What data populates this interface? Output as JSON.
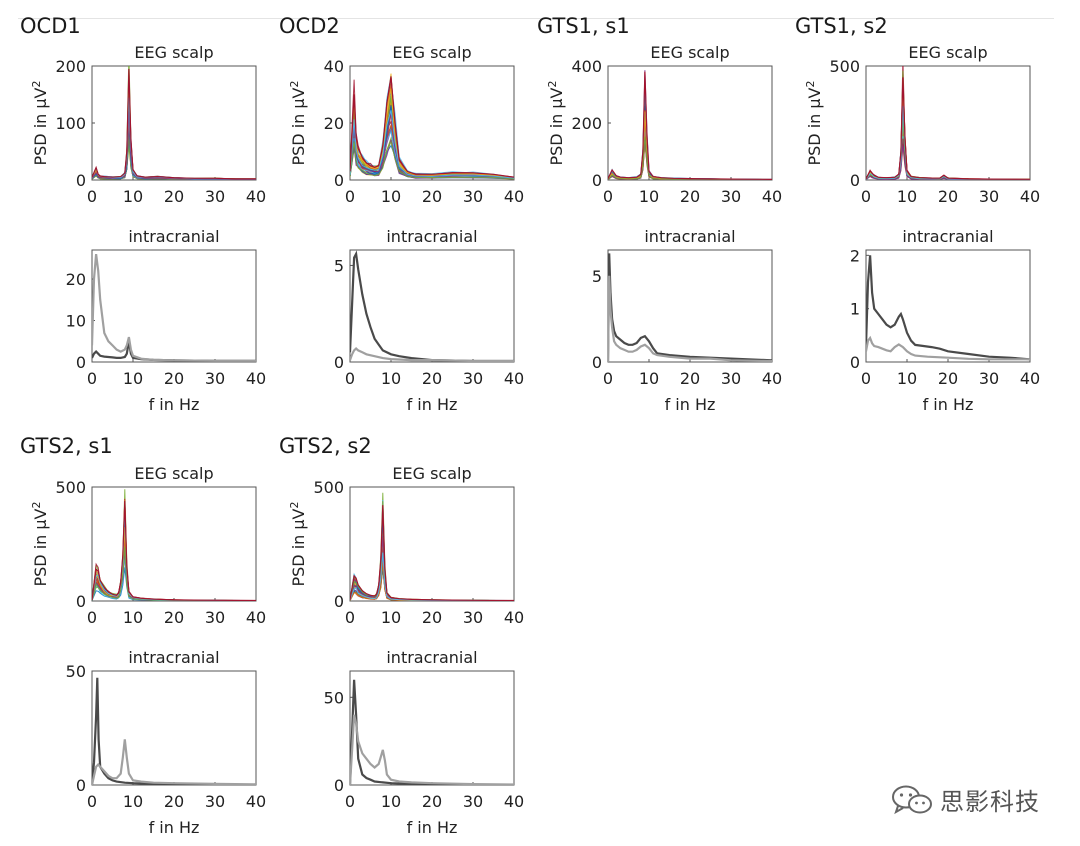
{
  "figure": {
    "groups": [
      {
        "label": "OCD1"
      },
      {
        "label": "OCD2"
      },
      {
        "label": "GTS1, s1"
      },
      {
        "label": "GTS1, s2"
      },
      {
        "label": "GTS2, s1"
      },
      {
        "label": "GTS2, s2"
      }
    ]
  },
  "watermark": {
    "text": "思影科技",
    "icon": "wechat-logo-icon"
  },
  "colors": {
    "axis": "#555555",
    "intracranial_dark": "#4a4a4a",
    "intracranial_light": "#a0a0a0",
    "eeg_palette": [
      "#0072bd",
      "#d95319",
      "#edb120",
      "#7e2f8e",
      "#77ac30",
      "#4dbeee",
      "#a2142f"
    ]
  },
  "chart_data": [
    {
      "panel": "OCD1 EEG scalp",
      "type": "line",
      "title": "EEG scalp",
      "ylabel": "PSD in µV²",
      "xlabel": "",
      "xlim": [
        0,
        40
      ],
      "ylim": [
        0,
        200
      ],
      "xticks": [
        "0",
        "10",
        "20",
        "30",
        "40"
      ],
      "yticks": [
        "0",
        "100",
        "200"
      ],
      "series": [
        {
          "x": [
            0,
            1,
            1.5,
            2,
            3,
            5,
            7,
            8,
            8.5,
            9,
            9.5,
            10,
            11,
            13,
            16,
            20,
            25,
            30,
            35,
            40
          ],
          "y": [
            5,
            22,
            10,
            7,
            6,
            5,
            6,
            12,
            50,
            195,
            70,
            18,
            7,
            5,
            6,
            4,
            3,
            3,
            2,
            2
          ]
        }
      ]
    },
    {
      "panel": "OCD1 intracranial",
      "type": "line",
      "title": "intracranial",
      "ylabel": "",
      "xlabel": "f in Hz",
      "xlim": [
        0,
        40
      ],
      "ylim": [
        0,
        27
      ],
      "xticks": [
        "0",
        "10",
        "20",
        "30",
        "40"
      ],
      "yticks": [
        "0",
        "10",
        "20"
      ],
      "series": [
        {
          "x": [
            0,
            0.5,
            1,
            1.5,
            2,
            3,
            4,
            5,
            6,
            7,
            8,
            8.5,
            9,
            9.5,
            10,
            12,
            15,
            20,
            30,
            40
          ],
          "y": [
            1,
            2,
            2.5,
            2,
            1.5,
            1.3,
            1.2,
            1.1,
            1,
            1,
            1.2,
            2,
            5,
            2,
            1,
            0.7,
            0.5,
            0.4,
            0.3,
            0.3
          ]
        },
        {
          "x": [
            0,
            0.5,
            1,
            1.5,
            2,
            3,
            4,
            5,
            6,
            7,
            8,
            8.5,
            9,
            9.5,
            10,
            12,
            15,
            20,
            30,
            40
          ],
          "y": [
            4,
            20,
            26,
            22,
            15,
            7,
            5,
            4,
            3,
            2.5,
            3,
            4,
            6,
            3,
            1.5,
            0.8,
            0.5,
            0.4,
            0.3,
            0.3
          ]
        }
      ]
    },
    {
      "panel": "OCD2 EEG scalp",
      "type": "line",
      "title": "EEG scalp",
      "ylabel": "PSD in µV²",
      "xlabel": "",
      "xlim": [
        0,
        40
      ],
      "ylim": [
        0,
        40
      ],
      "xticks": [
        "0",
        "10",
        "20",
        "30",
        "40"
      ],
      "yticks": [
        "0",
        "20",
        "40"
      ],
      "series": [
        {
          "x": [
            0,
            1,
            1.5,
            2,
            3,
            4,
            5,
            6,
            7,
            8,
            9,
            10,
            11,
            12,
            14,
            16,
            20,
            25,
            30,
            35,
            40
          ],
          "y": [
            3,
            30,
            15,
            11,
            8,
            6,
            5,
            4.5,
            5,
            12,
            27,
            36,
            20,
            7,
            3,
            2,
            2,
            2.5,
            2.5,
            2,
            1
          ]
        }
      ]
    },
    {
      "panel": "OCD2 intracranial",
      "type": "line",
      "title": "intracranial",
      "ylabel": "",
      "xlabel": "f in Hz",
      "xlim": [
        0,
        40
      ],
      "ylim": [
        0,
        5.8
      ],
      "xticks": [
        "0",
        "10",
        "20",
        "30",
        "40"
      ],
      "yticks": [
        "0",
        "5"
      ],
      "series": [
        {
          "x": [
            0,
            0.5,
            1,
            1.5,
            2,
            3,
            4,
            5,
            6,
            7,
            8,
            10,
            12,
            15,
            20,
            30,
            40
          ],
          "y": [
            0.5,
            3,
            5.4,
            5.6,
            4.8,
            3.5,
            2.5,
            1.8,
            1.2,
            0.9,
            0.6,
            0.4,
            0.3,
            0.2,
            0.1,
            0.05,
            0.05
          ]
        },
        {
          "x": [
            0,
            0.5,
            1,
            1.5,
            2,
            3,
            4,
            6,
            8,
            10,
            15,
            20,
            30,
            40
          ],
          "y": [
            0.1,
            0.4,
            0.6,
            0.7,
            0.6,
            0.5,
            0.4,
            0.3,
            0.2,
            0.15,
            0.1,
            0.1,
            0.05,
            0.05
          ]
        }
      ]
    },
    {
      "panel": "GTS1, s1 EEG scalp",
      "type": "line",
      "title": "EEG scalp",
      "ylabel": "PSD in µV²",
      "xlabel": "",
      "xlim": [
        0,
        40
      ],
      "ylim": [
        0,
        400
      ],
      "xticks": [
        "0",
        "10",
        "20",
        "30",
        "40"
      ],
      "yticks": [
        "0",
        "200",
        "400"
      ],
      "series": [
        {
          "x": [
            0,
            1,
            1.5,
            2,
            3,
            5,
            7,
            8,
            8.5,
            9,
            9.5,
            10,
            11,
            13,
            16,
            20,
            25,
            30,
            40
          ],
          "y": [
            5,
            35,
            25,
            15,
            10,
            8,
            10,
            20,
            100,
            380,
            150,
            30,
            12,
            8,
            6,
            5,
            4,
            3,
            2
          ]
        }
      ]
    },
    {
      "panel": "GTS1, s1 intracranial",
      "type": "line",
      "title": "intracranial",
      "ylabel": "",
      "xlabel": "f in Hz",
      "xlim": [
        0,
        40
      ],
      "ylim": [
        0,
        6.5
      ],
      "xticks": [
        "0",
        "10",
        "20",
        "30",
        "40"
      ],
      "yticks": [
        "0",
        "5"
      ],
      "series": [
        {
          "x": [
            0,
            0.3,
            0.6,
            1,
            1.5,
            2,
            3,
            4,
            5,
            6,
            7,
            8,
            9,
            10,
            11,
            12,
            15,
            20,
            25,
            30,
            40
          ],
          "y": [
            0,
            6.3,
            4,
            2.5,
            1.8,
            1.5,
            1.3,
            1.1,
            1,
            1,
            1.1,
            1.4,
            1.5,
            1.2,
            0.8,
            0.5,
            0.4,
            0.3,
            0.25,
            0.2,
            0.1
          ]
        },
        {
          "x": [
            0,
            0.3,
            0.6,
            1,
            1.5,
            2,
            3,
            4,
            5,
            6,
            7,
            8,
            9,
            10,
            11,
            12,
            15,
            20,
            25,
            30,
            40
          ],
          "y": [
            0,
            5,
            3,
            2,
            1.2,
            1,
            0.8,
            0.7,
            0.6,
            0.6,
            0.7,
            0.9,
            1,
            0.8,
            0.5,
            0.4,
            0.3,
            0.2,
            0.2,
            0.1,
            0.05
          ]
        }
      ]
    },
    {
      "panel": "GTS1, s2 EEG scalp",
      "type": "line",
      "title": "EEG scalp",
      "ylabel": "PSD in µV²",
      "xlabel": "",
      "xlim": [
        0,
        40
      ],
      "ylim": [
        0,
        500
      ],
      "xticks": [
        "0",
        "10",
        "20",
        "30",
        "40"
      ],
      "yticks": [
        "0",
        "500"
      ],
      "series": [
        {
          "x": [
            0,
            1,
            1.5,
            2,
            3,
            5,
            7,
            8,
            8.5,
            9,
            9.5,
            10,
            11,
            13,
            16,
            18,
            19,
            20,
            25,
            30,
            40
          ],
          "y": [
            5,
            40,
            30,
            20,
            12,
            10,
            12,
            25,
            120,
            450,
            180,
            40,
            15,
            10,
            8,
            8,
            20,
            8,
            5,
            4,
            3
          ]
        }
      ]
    },
    {
      "panel": "GTS1, s2 intracranial",
      "type": "line",
      "title": "intracranial",
      "ylabel": "",
      "xlabel": "f in Hz",
      "xlim": [
        0,
        40
      ],
      "ylim": [
        0,
        2.1
      ],
      "xticks": [
        "0",
        "10",
        "20",
        "30",
        "40"
      ],
      "yticks": [
        "0",
        "1",
        "2"
      ],
      "series": [
        {
          "x": [
            0,
            0.5,
            1,
            1.5,
            2,
            3,
            4,
            5,
            6,
            7,
            8,
            8.5,
            9,
            10,
            11,
            12,
            14,
            16,
            18,
            20,
            25,
            30,
            35,
            40
          ],
          "y": [
            0.3,
            1.5,
            2.0,
            1.3,
            1.0,
            0.9,
            0.8,
            0.7,
            0.65,
            0.7,
            0.85,
            0.9,
            0.8,
            0.55,
            0.4,
            0.32,
            0.3,
            0.28,
            0.25,
            0.2,
            0.15,
            0.1,
            0.08,
            0.05
          ]
        },
        {
          "x": [
            0,
            0.5,
            1,
            1.5,
            2,
            3,
            4,
            5,
            6,
            7,
            8,
            9,
            10,
            11,
            12,
            15,
            20,
            25,
            30,
            35,
            40
          ],
          "y": [
            0.2,
            0.4,
            0.45,
            0.35,
            0.3,
            0.28,
            0.25,
            0.22,
            0.2,
            0.28,
            0.33,
            0.28,
            0.2,
            0.15,
            0.12,
            0.1,
            0.08,
            0.06,
            0.05,
            0.05,
            0.05
          ]
        }
      ]
    },
    {
      "panel": "GTS2, s1 EEG scalp",
      "type": "line",
      "title": "EEG scalp",
      "ylabel": "PSD in µV²",
      "xlabel": "",
      "xlim": [
        0,
        40
      ],
      "ylim": [
        0,
        500
      ],
      "xticks": [
        "0",
        "10",
        "20",
        "30",
        "40"
      ],
      "yticks": [
        "0",
        "500"
      ],
      "series": [
        {
          "x": [
            0,
            1,
            1.5,
            2,
            3,
            4,
            5,
            6,
            6.5,
            7,
            7.5,
            8,
            8.5,
            9,
            10,
            12,
            15,
            20,
            25,
            30,
            40
          ],
          "y": [
            5,
            140,
            130,
            90,
            60,
            40,
            30,
            25,
            35,
            80,
            200,
            440,
            150,
            40,
            18,
            12,
            8,
            5,
            4,
            3,
            2
          ]
        }
      ]
    },
    {
      "panel": "GTS2, s1 intracranial",
      "type": "line",
      "title": "intracranial",
      "ylabel": "",
      "xlabel": "f in Hz",
      "xlim": [
        0,
        40
      ],
      "ylim": [
        0,
        50
      ],
      "xticks": [
        "0",
        "10",
        "20",
        "30",
        "40"
      ],
      "yticks": [
        "0",
        "50"
      ],
      "series": [
        {
          "x": [
            0,
            0.5,
            1,
            1.3,
            1.6,
            2,
            3,
            4,
            5,
            6,
            8,
            10,
            15,
            20,
            30,
            40
          ],
          "y": [
            0,
            10,
            30,
            47,
            20,
            8,
            5,
            3,
            2,
            1.5,
            1,
            0.8,
            0.5,
            0.3,
            0.2,
            0.1
          ]
        },
        {
          "x": [
            0,
            0.5,
            1,
            1.5,
            2,
            3,
            4,
            5,
            6,
            7,
            7.5,
            8,
            8.5,
            9,
            10,
            12,
            15,
            20,
            30,
            40
          ],
          "y": [
            0,
            4,
            8,
            9,
            8,
            6,
            4,
            3,
            3,
            5,
            12,
            20,
            12,
            5,
            2,
            1.5,
            1,
            0.8,
            0.5,
            0.3
          ]
        }
      ]
    },
    {
      "panel": "GTS2, s2 EEG scalp",
      "type": "line",
      "title": "EEG scalp",
      "ylabel": "PSD in µV²",
      "xlabel": "",
      "xlim": [
        0,
        40
      ],
      "ylim": [
        0,
        500
      ],
      "xticks": [
        "0",
        "10",
        "20",
        "30",
        "40"
      ],
      "yticks": [
        "0",
        "500"
      ],
      "series": [
        {
          "x": [
            0,
            1,
            1.5,
            2,
            3,
            4,
            5,
            6,
            6.5,
            7,
            7.5,
            8,
            8.5,
            9,
            10,
            12,
            15,
            20,
            25,
            30,
            40
          ],
          "y": [
            5,
            110,
            100,
            70,
            45,
            32,
            25,
            22,
            30,
            70,
            180,
            420,
            140,
            35,
            15,
            10,
            7,
            5,
            4,
            3,
            2
          ]
        }
      ]
    },
    {
      "panel": "GTS2, s2 intracranial",
      "type": "line",
      "title": "intracranial",
      "ylabel": "",
      "xlabel": "f in Hz",
      "xlim": [
        0,
        40
      ],
      "ylim": [
        0,
        65
      ],
      "xticks": [
        "0",
        "10",
        "20",
        "30",
        "40"
      ],
      "yticks": [
        "0",
        "50"
      ],
      "series": [
        {
          "x": [
            0,
            0.5,
            1,
            1.5,
            2,
            3,
            4,
            5,
            6,
            8,
            10,
            15,
            20,
            30,
            40
          ],
          "y": [
            0,
            30,
            60,
            40,
            15,
            6,
            4,
            3,
            2,
            1.5,
            1,
            0.6,
            0.4,
            0.2,
            0.1
          ]
        },
        {
          "x": [
            0,
            0.5,
            1,
            1.5,
            2,
            3,
            4,
            5,
            6,
            7,
            7.5,
            8,
            8.5,
            9,
            10,
            12,
            15,
            20,
            30,
            40
          ],
          "y": [
            0,
            20,
            40,
            35,
            25,
            18,
            15,
            12,
            10,
            12,
            16,
            20,
            14,
            6,
            3,
            2,
            1.5,
            1,
            0.5,
            0.3
          ]
        }
      ]
    }
  ]
}
